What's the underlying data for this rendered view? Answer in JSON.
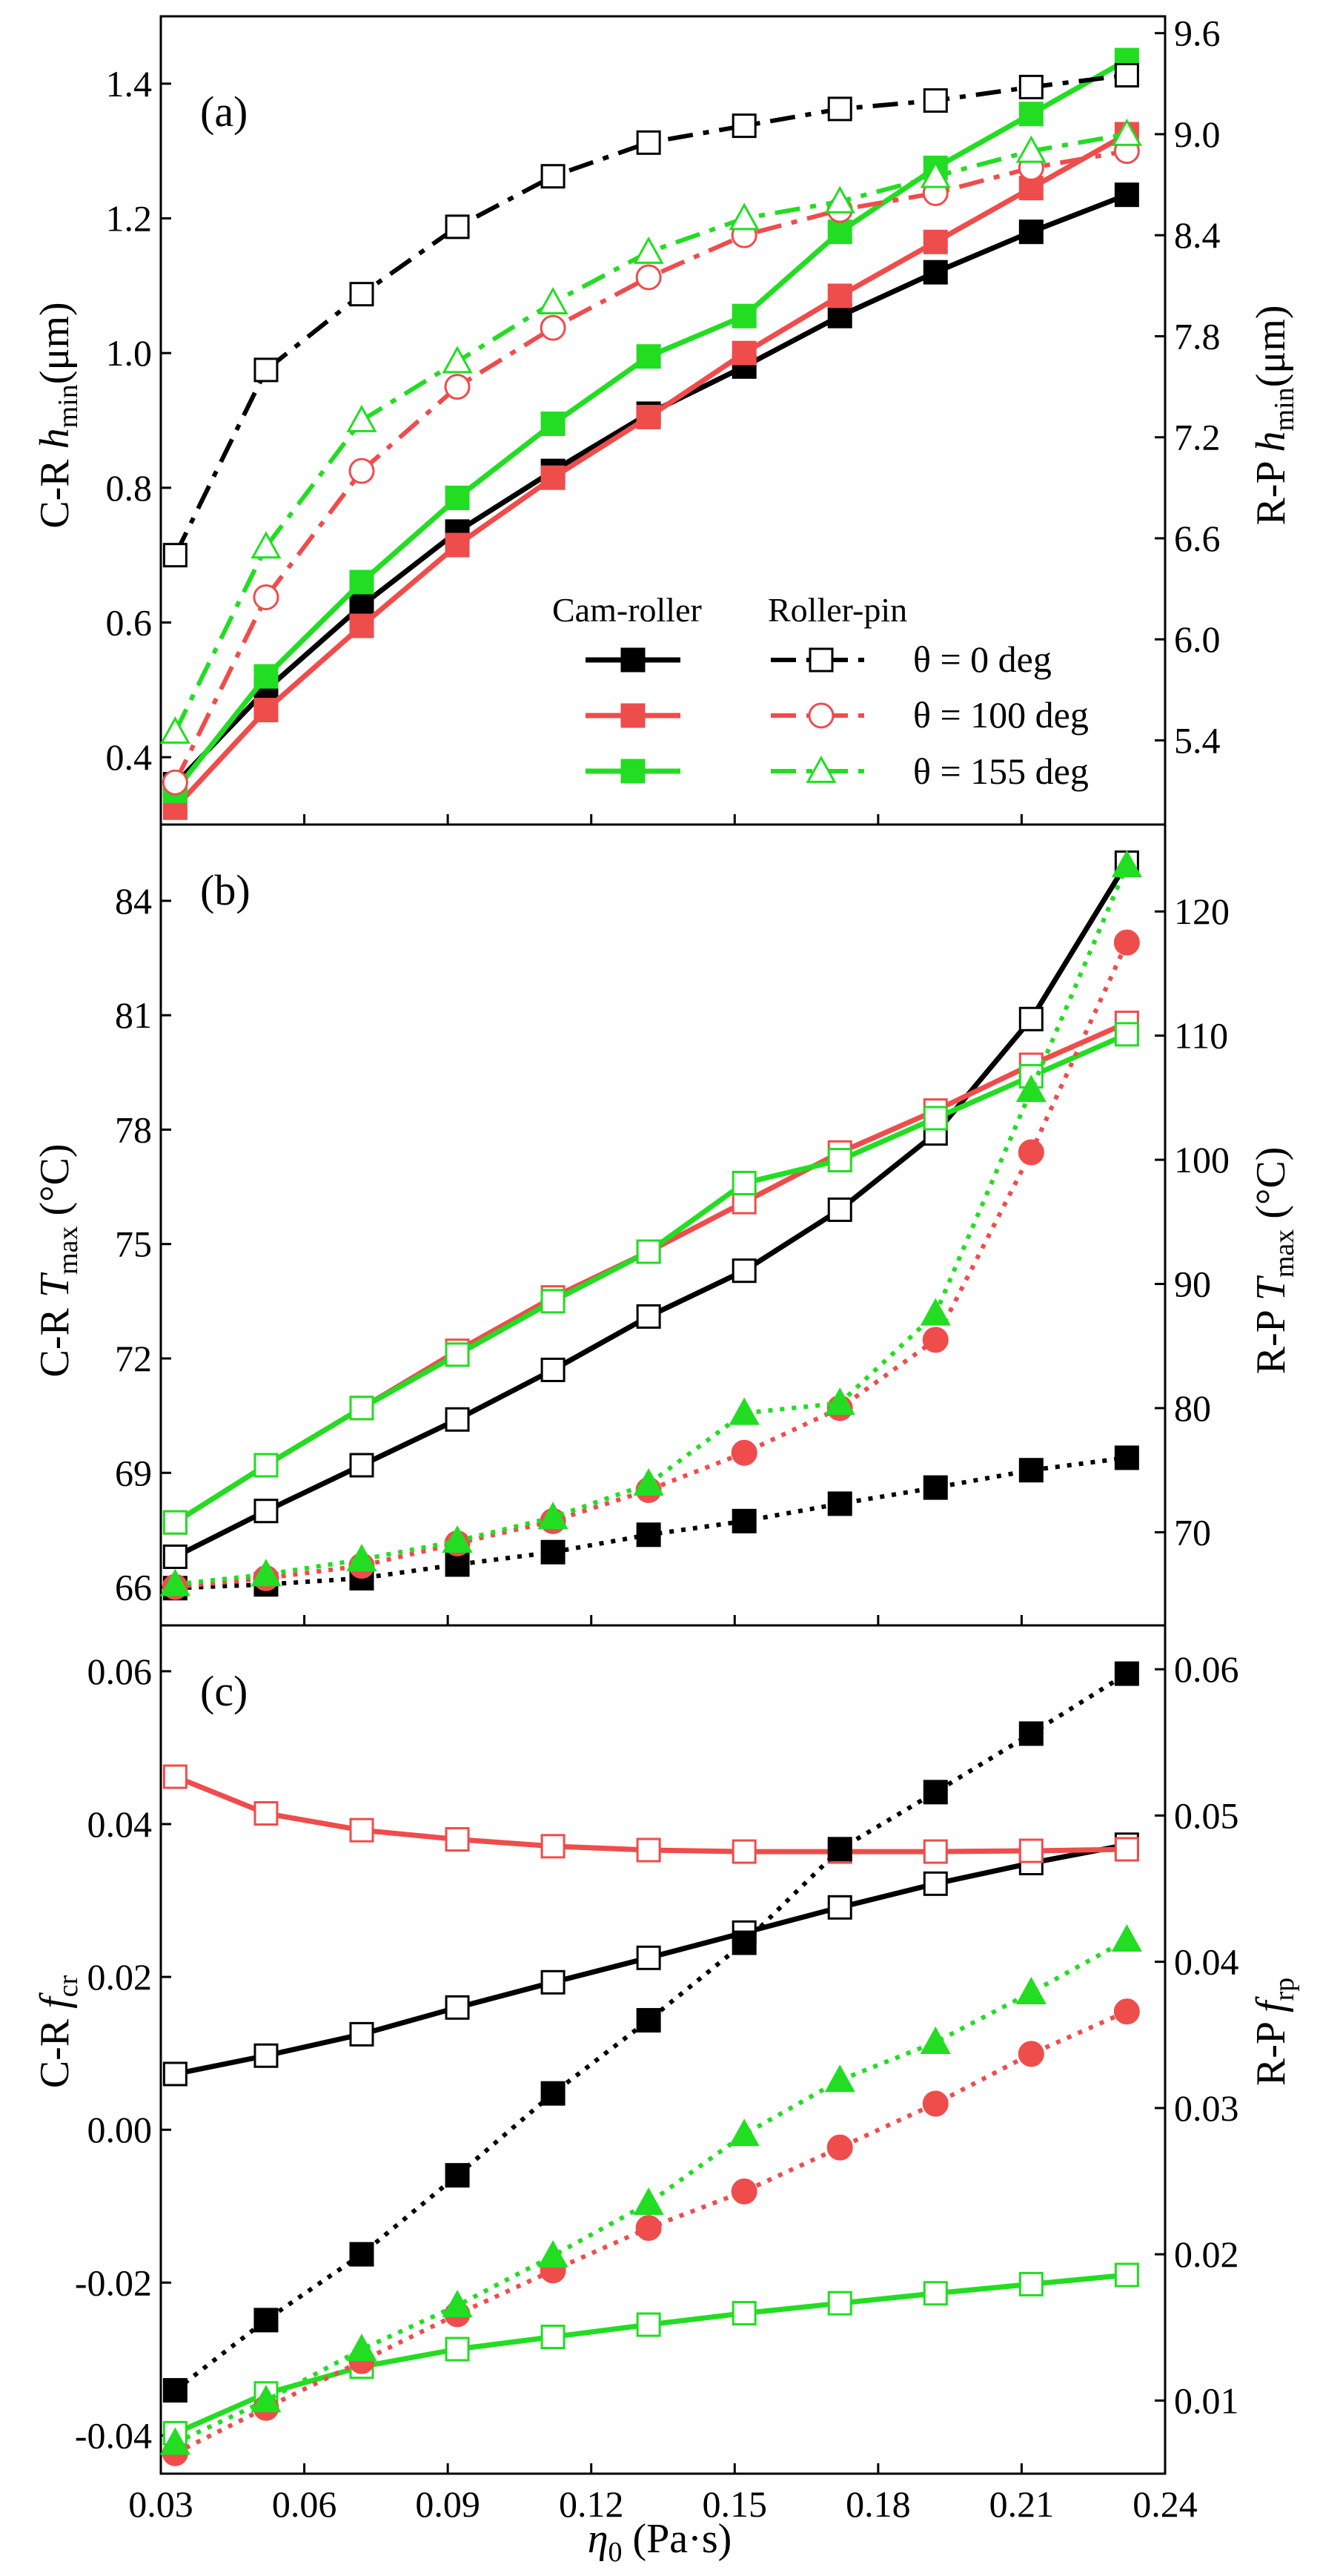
{
  "chart_data": [
    {
      "type": "line",
      "panel_label": "(a)",
      "x": [
        0.033,
        0.052,
        0.072,
        0.092,
        0.112,
        0.132,
        0.152,
        0.172,
        0.192,
        0.212,
        0.232
      ],
      "xlabel": "η0 (Pa·s)",
      "xlim": [
        0.03,
        0.24
      ],
      "xticks": [
        "0.03",
        "0.06",
        "0.09",
        "0.12",
        "0.15",
        "0.18",
        "0.21",
        "0.24"
      ],
      "ylabel_left": "C-R  hmin(μm)",
      "ylim_left": [
        0.3,
        1.5
      ],
      "yticks_left": [
        "0.4",
        "0.6",
        "0.8",
        "1.0",
        "1.2",
        "1.4"
      ],
      "ylabel_right": "R-P hmin(μm)",
      "ylim_right": [
        4.9,
        9.7
      ],
      "yticks_right": [
        "5.4",
        "6.0",
        "6.6",
        "7.2",
        "7.8",
        "8.4",
        "9.0",
        "9.6"
      ],
      "legend": {
        "col1": "Cam-roller",
        "col2": "Roller-pin",
        "entries": [
          "θ = 0 deg",
          "θ = 100 deg",
          "θ = 155 deg"
        ]
      },
      "series": [
        {
          "axis": "left",
          "color": "#000000",
          "marker": "filled-square",
          "line": "solid",
          "values": [
            0.36,
            0.5,
            0.625,
            0.735,
            0.825,
            0.91,
            0.98,
            1.055,
            1.12,
            1.18,
            1.235
          ]
        },
        {
          "axis": "left",
          "color": "#ef4c4c",
          "marker": "filled-square",
          "line": "solid",
          "values": [
            0.325,
            0.47,
            0.595,
            0.715,
            0.815,
            0.905,
            1.0,
            1.085,
            1.165,
            1.245,
            1.325
          ]
        },
        {
          "axis": "left",
          "color": "#22dd22",
          "marker": "filled-square",
          "line": "solid",
          "values": [
            0.35,
            0.52,
            0.66,
            0.785,
            0.895,
            0.995,
            1.055,
            1.18,
            1.275,
            1.355,
            1.435
          ]
        },
        {
          "axis": "right",
          "color": "#000000",
          "marker": "open-square",
          "line": "dashdot",
          "values": [
            6.5,
            7.6,
            8.05,
            8.45,
            8.75,
            8.95,
            9.05,
            9.15,
            9.2,
            9.28,
            9.35
          ]
        },
        {
          "axis": "right",
          "color": "#ef4c4c",
          "marker": "open-circle",
          "line": "dashdot",
          "values": [
            5.15,
            6.25,
            7.0,
            7.5,
            7.85,
            8.15,
            8.4,
            8.55,
            8.65,
            8.8,
            8.9
          ]
        },
        {
          "axis": "right",
          "color": "#22dd22",
          "marker": "open-triangle",
          "line": "dashdot",
          "values": [
            5.45,
            6.55,
            7.3,
            7.65,
            8.0,
            8.3,
            8.5,
            8.6,
            8.75,
            8.9,
            9.0
          ]
        }
      ]
    },
    {
      "type": "line",
      "panel_label": "(b)",
      "x": [
        0.033,
        0.052,
        0.072,
        0.092,
        0.112,
        0.132,
        0.152,
        0.172,
        0.192,
        0.212,
        0.232
      ],
      "xlabel": "η0 (Pa·s)",
      "xlim": [
        0.03,
        0.24
      ],
      "xticks": [
        "0.03",
        "0.06",
        "0.09",
        "0.12",
        "0.15",
        "0.18",
        "0.21",
        "0.24"
      ],
      "ylabel_left": "C-R  Tmax (°C)",
      "ylim_left": [
        65.0,
        86.0
      ],
      "yticks_left": [
        "66",
        "69",
        "72",
        "75",
        "78",
        "81",
        "84"
      ],
      "ylabel_right": "R-P  Tmax (°C)",
      "ylim_right": [
        62.5,
        127.0
      ],
      "yticks_right": [
        "70",
        "80",
        "90",
        "100",
        "110",
        "120"
      ],
      "series": [
        {
          "axis": "left",
          "color": "#000000",
          "marker": "open-square",
          "line": "solid",
          "values": [
            66.8,
            68.0,
            69.2,
            70.4,
            71.7,
            73.1,
            74.3,
            75.9,
            77.9,
            80.9,
            85.0
          ]
        },
        {
          "axis": "left",
          "color": "#ef4c4c",
          "marker": "open-square",
          "line": "solid",
          "values": [
            67.7,
            69.2,
            70.7,
            72.2,
            73.6,
            74.8,
            76.1,
            77.4,
            78.5,
            79.7,
            80.8
          ]
        },
        {
          "axis": "left",
          "color": "#22dd22",
          "marker": "open-square",
          "line": "solid",
          "values": [
            67.7,
            69.2,
            70.7,
            72.1,
            73.5,
            74.8,
            76.6,
            77.2,
            78.3,
            79.4,
            80.5
          ]
        },
        {
          "axis": "right",
          "color": "#000000",
          "marker": "filled-square",
          "line": "dotted",
          "values": [
            65.5,
            65.8,
            66.3,
            67.4,
            68.4,
            69.8,
            70.9,
            72.3,
            73.6,
            75.0,
            76.0
          ]
        },
        {
          "axis": "right",
          "color": "#ef4c4c",
          "marker": "filled-circle",
          "line": "dotted",
          "values": [
            65.6,
            66.3,
            67.3,
            69.1,
            70.9,
            73.4,
            76.4,
            80.0,
            85.5,
            100.6,
            117.5
          ]
        },
        {
          "axis": "right",
          "color": "#22dd22",
          "marker": "filled-triangle",
          "line": "dotted",
          "values": [
            65.8,
            66.6,
            67.8,
            69.3,
            71.2,
            73.9,
            79.6,
            80.4,
            87.6,
            105.6,
            123.7
          ]
        }
      ]
    },
    {
      "type": "line",
      "panel_label": "(c)",
      "x": [
        0.033,
        0.052,
        0.072,
        0.092,
        0.112,
        0.132,
        0.152,
        0.172,
        0.192,
        0.212,
        0.232
      ],
      "xlabel": "η0 (Pa·s)",
      "xlim": [
        0.03,
        0.24
      ],
      "xticks": [
        "0.03",
        "0.06",
        "0.09",
        "0.12",
        "0.15",
        "0.18",
        "0.21",
        "0.24"
      ],
      "ylabel_left": "C-R  fcr",
      "ylim_left": [
        -0.045,
        0.066
      ],
      "yticks_left": [
        "-0.04",
        "-0.02",
        "0.00",
        "0.02",
        "0.04",
        "0.06"
      ],
      "ylabel_right": "R-P  frp",
      "ylim_right": [
        0.005,
        0.063
      ],
      "yticks_right": [
        "0.01",
        "0.02",
        "0.03",
        "0.04",
        "0.05",
        "0.06"
      ],
      "series": [
        {
          "axis": "left",
          "color": "#000000",
          "marker": "open-square",
          "line": "solid",
          "values": [
            0.0073,
            0.0097,
            0.0125,
            0.016,
            0.0193,
            0.0225,
            0.0258,
            0.0291,
            0.0322,
            0.0349,
            0.0373
          ]
        },
        {
          "axis": "left",
          "color": "#ef4c4c",
          "marker": "open-square",
          "line": "solid",
          "values": [
            0.0462,
            0.0414,
            0.0392,
            0.038,
            0.0371,
            0.0366,
            0.0364,
            0.0364,
            0.0364,
            0.0365,
            0.0367
          ]
        },
        {
          "axis": "left",
          "color": "#22dd22",
          "marker": "open-square",
          "line": "solid",
          "values": [
            -0.0397,
            -0.0345,
            -0.031,
            -0.0287,
            -0.0271,
            -0.0255,
            -0.024,
            -0.0227,
            -0.0214,
            -0.0202,
            -0.019
          ]
        },
        {
          "axis": "right",
          "color": "#000000",
          "marker": "filled-square",
          "line": "dotted",
          "values": [
            0.0107,
            0.0155,
            0.02,
            0.0254,
            0.031,
            0.036,
            0.0413,
            0.0477,
            0.0516,
            0.0556,
            0.0597
          ]
        },
        {
          "axis": "right",
          "color": "#ef4c4c",
          "marker": "filled-circle",
          "line": "dotted",
          "values": [
            0.0064,
            0.0095,
            0.0127,
            0.0159,
            0.0189,
            0.0218,
            0.0243,
            0.0273,
            0.0303,
            0.0337,
            0.0366
          ]
        },
        {
          "axis": "right",
          "color": "#22dd22",
          "marker": "filled-triangle",
          "line": "dotted",
          "values": [
            0.0071,
            0.01,
            0.0135,
            0.0165,
            0.0199,
            0.0235,
            0.0282,
            0.0319,
            0.0345,
            0.0379,
            0.0415
          ]
        }
      ]
    }
  ]
}
